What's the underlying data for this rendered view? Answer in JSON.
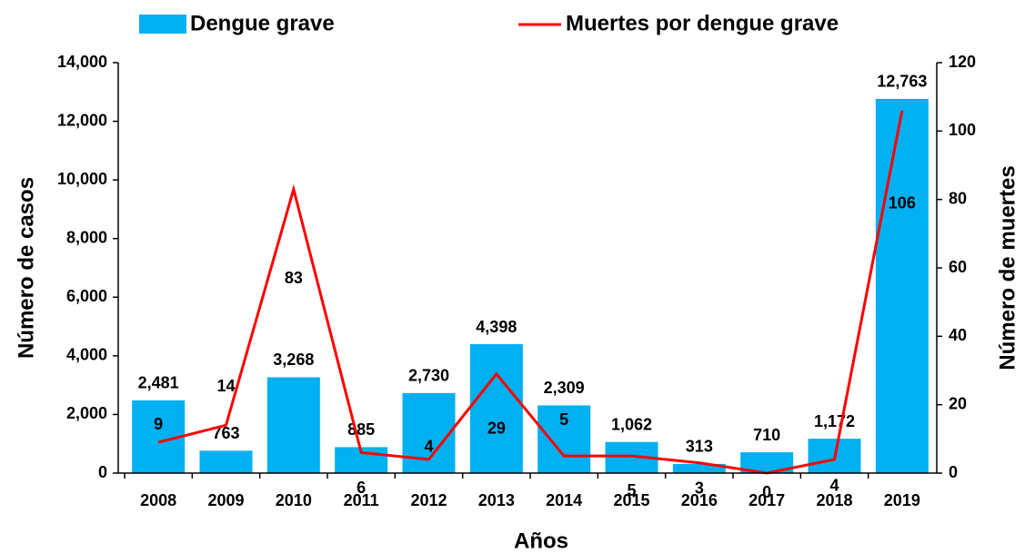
{
  "chart_data": {
    "type": "bar-line",
    "categories": [
      "2008",
      "2009",
      "2010",
      "2011",
      "2012",
      "2013",
      "2014",
      "2015",
      "2016",
      "2017",
      "2018",
      "2019"
    ],
    "x_label": "Años",
    "y_label": "Número de casos",
    "y2_label": "Número de muertes",
    "ylim": [
      0,
      14000
    ],
    "yticks": [
      0,
      {
        "value": 2000,
        "label": "2,000"
      },
      {
        "value": 4000,
        "label": "4,000"
      },
      {
        "value": 6000,
        "label": "6,000"
      },
      {
        "value": 8000,
        "label": "8,000"
      },
      {
        "value": 10000,
        "label": "10,000"
      },
      {
        "value": 12000,
        "label": "12,000"
      },
      {
        "value": 14000,
        "label": "14,000"
      }
    ],
    "y2lim": [
      0,
      120
    ],
    "y2ticks": [
      0,
      20,
      40,
      60,
      80,
      100,
      120
    ],
    "series": [
      {
        "name": "Dengue grave",
        "type": "bar",
        "color": "#00b0f0",
        "values": [
          2481,
          763,
          3268,
          885,
          2730,
          4398,
          2309,
          1062,
          313,
          710,
          1172,
          12763
        ],
        "value_labels": [
          "2,481",
          "763",
          "3,268",
          "885",
          "2,730",
          "4,398",
          "2,309",
          "1,062",
          "313",
          "710",
          "1,172",
          "12,763"
        ]
      },
      {
        "name": "Muertes por dengue grave",
        "type": "line",
        "axis": "y2",
        "color": "#ff0000",
        "values": [
          9,
          14,
          83,
          6,
          4,
          29,
          5,
          5,
          3,
          0,
          4,
          106
        ]
      }
    ]
  }
}
